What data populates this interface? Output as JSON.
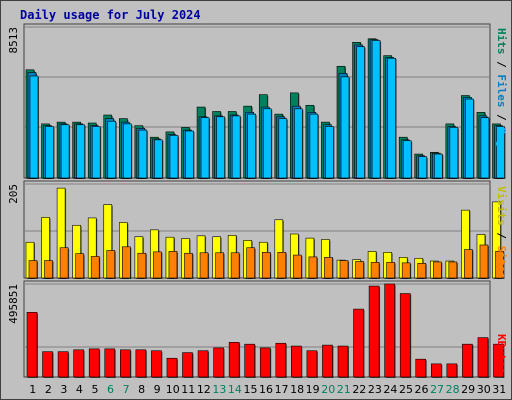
{
  "chart_data": [
    {
      "type": "bar",
      "title": "Daily usage for July 2024",
      "categories": [
        "1",
        "2",
        "3",
        "4",
        "5",
        "6",
        "7",
        "8",
        "9",
        "10",
        "11",
        "12",
        "13",
        "14",
        "15",
        "16",
        "17",
        "18",
        "19",
        "20",
        "21",
        "22",
        "23",
        "24",
        "25",
        "26",
        "27",
        "28",
        "29",
        "30",
        "31"
      ],
      "weekend_days": [
        "6",
        "7",
        "13",
        "14",
        "20",
        "21",
        "27",
        "28"
      ],
      "ymax_label": "8513",
      "ylim": [
        0,
        8513
      ],
      "series": [
        {
          "name": "Hits",
          "color": "#00805c",
          "values": [
            6100,
            3050,
            3150,
            3150,
            3100,
            3550,
            3350,
            2950,
            2300,
            2600,
            2850,
            4000,
            3750,
            3750,
            4050,
            4700,
            3600,
            4800,
            4100,
            3150,
            6300,
            7650,
            7850,
            6900,
            2300,
            1350,
            1450,
            3050,
            4650,
            3700,
            3050
          ]
        },
        {
          "name": "Files",
          "color": "#0080c0",
          "values": [
            5950,
            2950,
            3050,
            3050,
            2950,
            3350,
            3150,
            2800,
            2200,
            2450,
            2700,
            3450,
            3500,
            3550,
            3700,
            4000,
            3450,
            4050,
            3700,
            3000,
            5900,
            7500,
            7800,
            6800,
            2150,
            1250,
            1400,
            2900,
            4550,
            3500,
            2950
          ]
        },
        {
          "name": "Pages",
          "color": "#00c0ff",
          "values": [
            5750,
            2900,
            3000,
            3000,
            2900,
            3200,
            3050,
            2700,
            2150,
            2400,
            2650,
            3400,
            3450,
            3500,
            3600,
            3900,
            3350,
            3900,
            3600,
            2900,
            5700,
            7400,
            7750,
            6750,
            2100,
            1200,
            1350,
            2850,
            4450,
            3400,
            2900
          ]
        }
      ]
    },
    {
      "type": "bar",
      "ymax_label": "205",
      "ylim": [
        0,
        205
      ],
      "series": [
        {
          "name": "Visits",
          "color": "#ffff00",
          "values": [
            78,
            132,
            196,
            115,
            131,
            160,
            121,
            90,
            105,
            89,
            86,
            92,
            90,
            93,
            82,
            78,
            127,
            96,
            87,
            84,
            39,
            40,
            58,
            56,
            45,
            43,
            37,
            37,
            148,
            95,
            166
          ]
        },
        {
          "name": "Sites",
          "color": "#ff8000",
          "values": [
            38,
            38,
            66,
            53,
            47,
            60,
            68,
            54,
            57,
            58,
            54,
            55,
            55,
            55,
            66,
            56,
            56,
            50,
            46,
            45,
            38,
            36,
            34,
            34,
            33,
            32,
            35,
            35,
            62,
            72,
            58
          ]
        }
      ]
    },
    {
      "type": "bar",
      "ymax_label": "495851",
      "ylim": [
        0,
        495851
      ],
      "series": [
        {
          "name": "KBytes",
          "color": "#ff0000",
          "values": [
            345000,
            135000,
            135000,
            145000,
            150000,
            150000,
            145000,
            145000,
            140000,
            100000,
            130000,
            140000,
            155000,
            185000,
            175000,
            155000,
            180000,
            165000,
            140000,
            170000,
            165000,
            362000,
            485000,
            496000,
            445000,
            95000,
            70000,
            70000,
            175000,
            210000,
            175000
          ]
        }
      ]
    }
  ]
}
